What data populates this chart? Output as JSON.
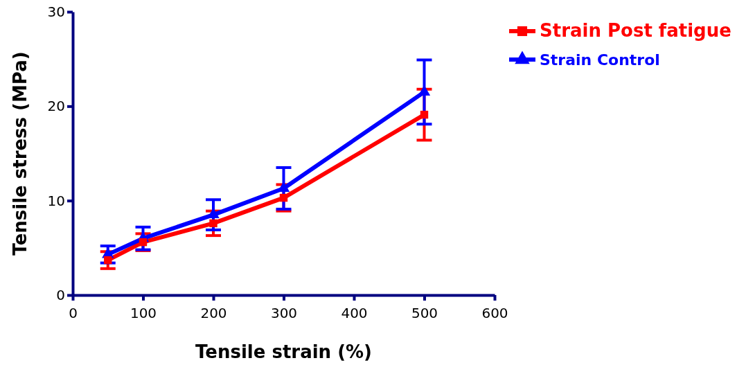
{
  "chart_data": {
    "type": "line",
    "xlabel": "Tensile strain (%)",
    "ylabel": "Tensile stress (MPa)",
    "x": [
      50,
      100,
      200,
      300,
      500
    ],
    "xlim": [
      0,
      600
    ],
    "xticks": [
      0,
      100,
      200,
      300,
      400,
      500,
      600
    ],
    "ylim": [
      0,
      30
    ],
    "yticks": [
      0,
      10,
      20,
      30
    ],
    "legend": "top right",
    "grid": false,
    "line_style": "solid",
    "series": [
      {
        "name": "Strain Post fatigue",
        "color": "#ff0000",
        "marker": "square",
        "values": [
          3.7,
          5.6,
          7.6,
          10.3,
          19.1
        ],
        "errors": [
          0.9,
          0.9,
          1.3,
          1.4,
          2.7
        ]
      },
      {
        "name": "Strain Control",
        "color": "#0000ff",
        "marker": "triangle",
        "values": [
          4.3,
          6.0,
          8.5,
          11.3,
          21.5
        ],
        "errors": [
          0.9,
          1.2,
          1.6,
          2.2,
          3.4
        ]
      }
    ]
  }
}
